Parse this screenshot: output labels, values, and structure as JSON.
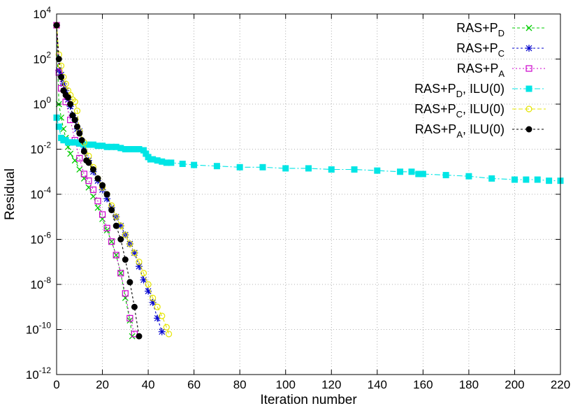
{
  "chart_data": {
    "type": "line",
    "title": "",
    "xlabel": "Iteration number",
    "ylabel": "Residual",
    "xlim": [
      0,
      220
    ],
    "ylim_log10": [
      -12,
      4
    ],
    "log_scale_y": true,
    "grid": true,
    "legend_position": "top-right",
    "x_ticks": [
      "0",
      "20",
      "40",
      "60",
      "80",
      "100",
      "120",
      "140",
      "160",
      "180",
      "200",
      "220"
    ],
    "y_ticks": [
      {
        "base": "10",
        "exp": "4"
      },
      {
        "base": "10",
        "exp": "2"
      },
      {
        "base": "10",
        "exp": "0"
      },
      {
        "base": "10",
        "exp": "-2"
      },
      {
        "base": "10",
        "exp": "-4"
      },
      {
        "base": "10",
        "exp": "-6"
      },
      {
        "base": "10",
        "exp": "-8"
      },
      {
        "base": "10",
        "exp": "-10"
      },
      {
        "base": "10",
        "exp": "-12"
      }
    ],
    "series": [
      {
        "name": "RAS+P_D",
        "label_main": "RAS+P",
        "label_sub": "D",
        "label_suffix": "",
        "color": "#00cc00",
        "marker": "x",
        "dash": "4,3",
        "x": [
          0,
          1,
          2,
          3,
          4,
          5,
          6,
          8,
          10,
          12,
          14,
          16,
          18,
          20,
          22,
          24,
          26,
          28,
          30,
          32,
          33
        ],
        "y_log10": [
          3.5,
          0,
          -0.6,
          -1.1,
          -1.5,
          -1.9,
          -2.2,
          -2.5,
          -2.9,
          -3.3,
          -3.7,
          -4.1,
          -4.6,
          -5.1,
          -5.6,
          -6.1,
          -6.7,
          -7.5,
          -8.6,
          -9.6,
          -10.3
        ]
      },
      {
        "name": "RAS+P_C",
        "label_main": "RAS+P",
        "label_sub": "C",
        "label_suffix": "",
        "color": "#0000cc",
        "marker": "*",
        "dash": "3,3",
        "x": [
          0,
          1,
          2,
          3,
          4,
          5,
          6,
          7,
          8,
          9,
          10,
          12,
          14,
          16,
          18,
          20,
          22,
          24,
          26,
          28,
          30,
          32,
          34,
          36,
          38,
          40,
          42,
          44,
          46
        ],
        "y_log10": [
          3.5,
          1.5,
          1.3,
          0.9,
          0.6,
          0.2,
          -0.1,
          -0.5,
          -0.7,
          -1.1,
          -1.2,
          -1.9,
          -2.5,
          -3.0,
          -3.4,
          -3.8,
          -4.2,
          -4.6,
          -5.0,
          -5.4,
          -5.8,
          -6.2,
          -6.6,
          -7.2,
          -7.8,
          -8.3,
          -8.8,
          -9.5,
          -10.1
        ]
      },
      {
        "name": "RAS+P_A",
        "label_main": "RAS+P",
        "label_sub": "A",
        "label_suffix": "",
        "color": "#cc00cc",
        "marker": "square",
        "dash": "2,3",
        "x": [
          0,
          1,
          2,
          4,
          6,
          8,
          10,
          12,
          14,
          16,
          18,
          20,
          22,
          24,
          26,
          28,
          30,
          32,
          34
        ],
        "y_log10": [
          3.5,
          1.4,
          0.7,
          0.1,
          -0.7,
          -1.6,
          -2.4,
          -3.1,
          -3.4,
          -3.8,
          -4.3,
          -4.9,
          -5.5,
          -6.1,
          -6.7,
          -7.5,
          -8.4,
          -9.5,
          -10.2
        ]
      },
      {
        "name": "RAS+P_D, ILU(0)",
        "label_main": "RAS+P",
        "label_sub": "D",
        "label_suffix": ", ILU(0)",
        "color": "#00e5e5",
        "marker": "filled-square",
        "dash": "8,3,2,3",
        "x": [
          0,
          1,
          2,
          3,
          4,
          5,
          6,
          8,
          10,
          12,
          14,
          16,
          18,
          20,
          22,
          24,
          26,
          28,
          30,
          32,
          34,
          36,
          38,
          39,
          40,
          41,
          42,
          44,
          46,
          48,
          50,
          55,
          60,
          70,
          80,
          90,
          100,
          110,
          120,
          130,
          140,
          150,
          155,
          158,
          160,
          170,
          180,
          190,
          200,
          205,
          210,
          215,
          220
        ],
        "y_log10": [
          -0.6,
          -1.0,
          -1.5,
          -1.6,
          -1.6,
          -1.7,
          -1.7,
          -1.7,
          -1.75,
          -1.8,
          -1.8,
          -1.8,
          -1.85,
          -1.85,
          -1.9,
          -1.9,
          -1.9,
          -1.95,
          -2.0,
          -2.0,
          -2.0,
          -2.0,
          -2.05,
          -2.2,
          -2.35,
          -2.45,
          -2.45,
          -2.5,
          -2.55,
          -2.6,
          -2.6,
          -2.65,
          -2.7,
          -2.75,
          -2.8,
          -2.8,
          -2.85,
          -2.85,
          -2.9,
          -2.9,
          -2.95,
          -3.0,
          -3.0,
          -3.1,
          -3.1,
          -3.15,
          -3.2,
          -3.3,
          -3.35,
          -3.35,
          -3.35,
          -3.4,
          -3.4
        ]
      },
      {
        "name": "RAS+P_C, ILU(0)",
        "label_main": "RAS+P",
        "label_sub": "C",
        "label_suffix": ", ILU(0)",
        "color": "#e5e500",
        "marker": "circle",
        "dash": "6,3",
        "x": [
          0,
          1,
          2,
          3,
          4,
          5,
          6,
          7,
          8,
          9,
          10,
          12,
          14,
          16,
          18,
          20,
          22,
          24,
          26,
          28,
          30,
          32,
          34,
          36,
          38,
          40,
          42,
          44,
          46,
          48,
          49
        ],
        "y_log10": [
          3.5,
          2.2,
          1.7,
          1.2,
          0.9,
          0.6,
          0.4,
          0.2,
          0.1,
          -0.3,
          -1.2,
          -1.7,
          -2.3,
          -2.8,
          -3.3,
          -3.7,
          -4.0,
          -4.5,
          -5.0,
          -5.4,
          -5.8,
          -6.2,
          -6.6,
          -7.0,
          -7.5,
          -8.0,
          -8.6,
          -9.0,
          -9.4,
          -9.9,
          -10.2
        ]
      },
      {
        "name": "RAS+P_A, ILU(0)",
        "label_main": "RAS+P",
        "label_sub": "A",
        "label_suffix": ", ILU(0)",
        "color": "#000000",
        "marker": "filled-circle",
        "dash": "3,3",
        "x": [
          0,
          1,
          2,
          3,
          4,
          5,
          6,
          7,
          8,
          9,
          10,
          11,
          12,
          13,
          14,
          16,
          18,
          20,
          22,
          24,
          26,
          28,
          30,
          32,
          34,
          36
        ],
        "y_log10": [
          3.5,
          2.0,
          1.2,
          0.6,
          0.4,
          0.3,
          0.0,
          -0.5,
          -0.7,
          -1.0,
          -1.3,
          -1.6,
          -2.1,
          -2.5,
          -2.6,
          -2.9,
          -3.3,
          -3.6,
          -4.0,
          -4.7,
          -5.4,
          -6.0,
          -6.9,
          -7.9,
          -9.0,
          -10.3
        ]
      }
    ]
  }
}
